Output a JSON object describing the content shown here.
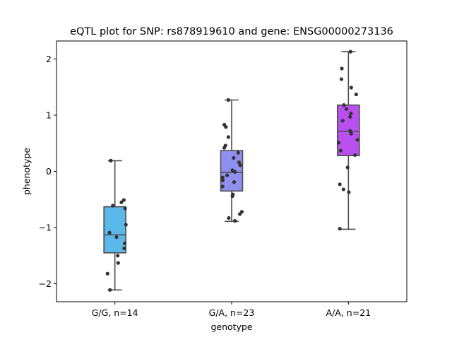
{
  "chart_data": {
    "type": "box",
    "title": "eQTL plot for SNP: rs878919610 and gene: ENSG00000273136",
    "xlabel": "genotype",
    "ylabel": "phenotype",
    "ylim": [
      -2.32,
      2.32
    ],
    "yticks": [
      -2,
      -1,
      0,
      1,
      2
    ],
    "ytick_labels": [
      "−2",
      "−1",
      "0",
      "1",
      "2"
    ],
    "grid": false,
    "categories": [
      "G/G, n=14",
      "G/A, n=23",
      "A/A, n=21"
    ],
    "boxes": [
      {
        "category": "G/G, n=14",
        "color": "#5bb8ea",
        "whisker_low": -2.11,
        "q1": -1.45,
        "median": -1.13,
        "q3": -0.63,
        "whisker_high": 0.19,
        "points": [
          [
            0.19,
            -0.1
          ],
          [
            -0.51,
            0.22
          ],
          [
            -0.55,
            0.16
          ],
          [
            -0.61,
            -0.05
          ],
          [
            -0.66,
            0.25
          ],
          [
            -0.95,
            0.27
          ],
          [
            -1.09,
            -0.13
          ],
          [
            -1.17,
            0.04
          ],
          [
            -1.28,
            0.24
          ],
          [
            -1.37,
            0.23
          ],
          [
            -1.5,
            0.07
          ],
          [
            -1.63,
            0.08
          ],
          [
            -1.82,
            -0.18
          ],
          [
            -2.11,
            -0.12
          ]
        ]
      },
      {
        "category": "G/A, n=23",
        "color": "#8f8ff0",
        "whisker_low": -0.89,
        "q1": -0.35,
        "median": -0.02,
        "q3": 0.37,
        "whisker_high": 1.27,
        "points": [
          [
            1.27,
            -0.08
          ],
          [
            0.83,
            -0.18
          ],
          [
            0.79,
            -0.14
          ],
          [
            0.61,
            -0.08
          ],
          [
            0.46,
            -0.15
          ],
          [
            0.42,
            -0.18
          ],
          [
            0.33,
            0.16
          ],
          [
            0.24,
            0.05
          ],
          [
            0.16,
            0.18
          ],
          [
            0.11,
            0.21
          ],
          [
            0.02,
            0.02
          ],
          [
            -0.01,
            0.08
          ],
          [
            -0.07,
            -0.11
          ],
          [
            -0.11,
            -0.22
          ],
          [
            -0.16,
            -0.22
          ],
          [
            -0.19,
            0.06
          ],
          [
            -0.27,
            -0.22
          ],
          [
            -0.41,
            0.03
          ],
          [
            -0.44,
            0.02
          ],
          [
            -0.72,
            0.25
          ],
          [
            -0.76,
            0.2
          ],
          [
            -0.83,
            -0.07
          ],
          [
            -0.88,
            0.08
          ]
        ]
      },
      {
        "category": "A/A, n=21",
        "color": "#b94fee",
        "whisker_low": -1.03,
        "q1": 0.28,
        "median": 0.71,
        "q3": 1.18,
        "whisker_high": 2.13,
        "points": [
          [
            2.13,
            0.05
          ],
          [
            1.83,
            -0.16
          ],
          [
            1.64,
            -0.17
          ],
          [
            1.49,
            0.07
          ],
          [
            1.37,
            0.19
          ],
          [
            1.18,
            -0.11
          ],
          [
            1.11,
            -0.05
          ],
          [
            1.03,
            0.06
          ],
          [
            0.97,
            0.04
          ],
          [
            0.9,
            -0.14
          ],
          [
            0.72,
            0.04
          ],
          [
            0.67,
            0.07
          ],
          [
            0.56,
            0.22
          ],
          [
            0.51,
            -0.24
          ],
          [
            0.37,
            -0.19
          ],
          [
            0.29,
            0.16
          ],
          [
            0.07,
            -0.02
          ],
          [
            -0.23,
            -0.21
          ],
          [
            -0.32,
            -0.12
          ],
          [
            -0.37,
            0.01
          ],
          [
            -1.02,
            -0.21
          ]
        ]
      }
    ]
  }
}
